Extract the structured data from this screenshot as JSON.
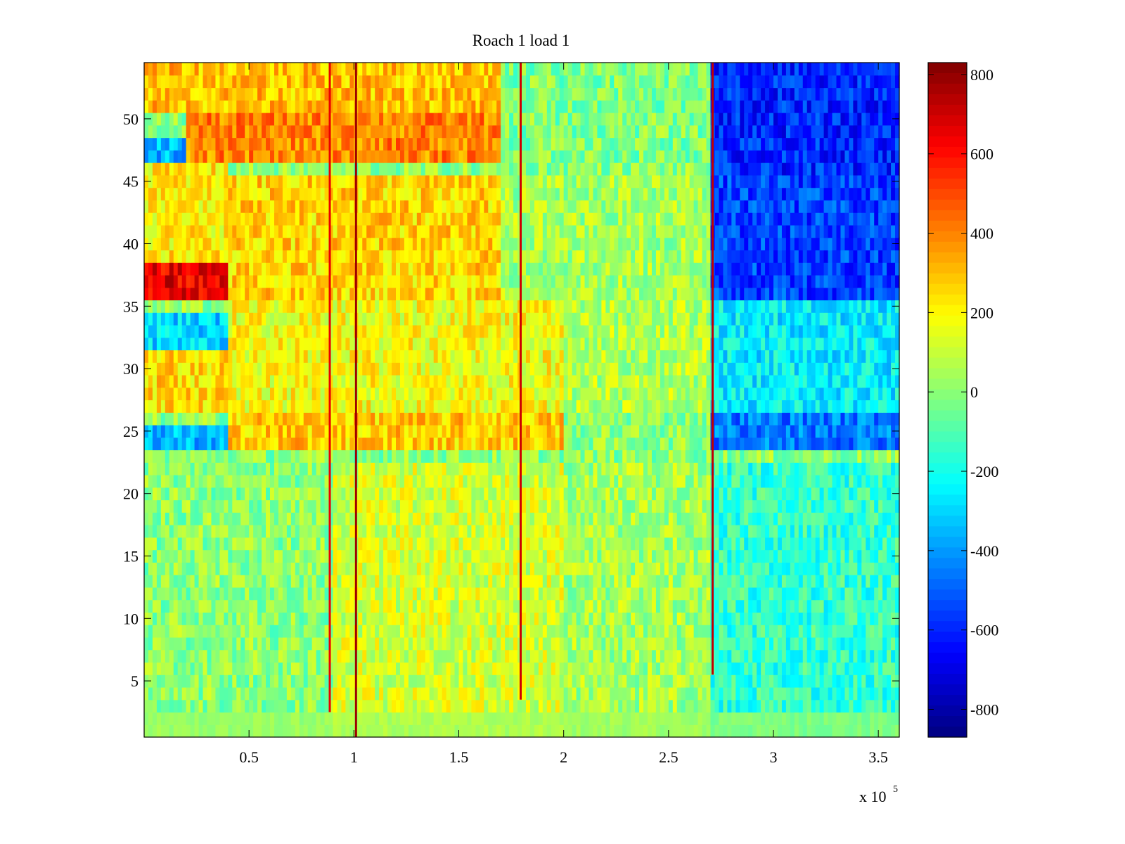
{
  "chart_data": {
    "type": "heatmap",
    "title": "Roach 1 load 1",
    "xlabel": "",
    "ylabel": "",
    "x_multiplier_base": "x 10",
    "x_multiplier_exponent": "5",
    "xlim": [
      0.0,
      3.6
    ],
    "ylim": [
      0.5,
      54.5
    ],
    "rows": 54,
    "x_ticks": [
      {
        "value": 0.5,
        "label": "0.5"
      },
      {
        "value": 1.0,
        "label": "1"
      },
      {
        "value": 1.5,
        "label": "1.5"
      },
      {
        "value": 2.0,
        "label": "2"
      },
      {
        "value": 2.5,
        "label": "2.5"
      },
      {
        "value": 3.0,
        "label": "3"
      },
      {
        "value": 3.5,
        "label": "3.5"
      }
    ],
    "y_ticks": [
      {
        "value": 5,
        "label": "5"
      },
      {
        "value": 10,
        "label": "10"
      },
      {
        "value": 15,
        "label": "15"
      },
      {
        "value": 20,
        "label": "20"
      },
      {
        "value": 25,
        "label": "25"
      },
      {
        "value": 30,
        "label": "30"
      },
      {
        "value": 35,
        "label": "35"
      },
      {
        "value": 40,
        "label": "40"
      },
      {
        "value": 45,
        "label": "45"
      },
      {
        "value": 50,
        "label": "50"
      }
    ],
    "colorbar": {
      "colormap": "jet",
      "range": [
        -870,
        830
      ],
      "ticks": [
        {
          "value": 800,
          "label": "800"
        },
        {
          "value": 600,
          "label": "600"
        },
        {
          "value": 400,
          "label": "400"
        },
        {
          "value": 200,
          "label": "200"
        },
        {
          "value": 0,
          "label": "0"
        },
        {
          "value": -200,
          "label": "-200"
        },
        {
          "value": -400,
          "label": "-400"
        },
        {
          "value": -600,
          "label": "-600"
        },
        {
          "value": -800,
          "label": "-800"
        }
      ]
    },
    "spike_columns": [
      {
        "x": 0.885,
        "value": 650,
        "rows": [
          3,
          54
        ]
      },
      {
        "x": 1.01,
        "value": 780,
        "rows": [
          1,
          54
        ]
      },
      {
        "x": 1.795,
        "value": 700,
        "rows": [
          4,
          54
        ]
      },
      {
        "x": 2.71,
        "value": 720,
        "rows": [
          6,
          54
        ]
      }
    ],
    "regions": [
      {
        "x": [
          0.0,
          0.9
        ],
        "rows": [
          1,
          22
        ],
        "value": 0
      },
      {
        "x": [
          0.9,
          2.0
        ],
        "rows": [
          1,
          22
        ],
        "value": 120
      },
      {
        "x": [
          2.0,
          2.7
        ],
        "rows": [
          1,
          22
        ],
        "value": 40
      },
      {
        "x": [
          2.7,
          3.6
        ],
        "rows": [
          1,
          22
        ],
        "value": -150
      },
      {
        "x": [
          0.0,
          0.4
        ],
        "rows": [
          24,
          25
        ],
        "value": -350
      },
      {
        "x": [
          0.4,
          2.0
        ],
        "rows": [
          24,
          26
        ],
        "value": 280
      },
      {
        "x": [
          2.0,
          2.7
        ],
        "rows": [
          23,
          26
        ],
        "value": 0
      },
      {
        "x": [
          2.7,
          3.6
        ],
        "rows": [
          24,
          26
        ],
        "value": -450
      },
      {
        "x": [
          0.0,
          0.4
        ],
        "rows": [
          27,
          31
        ],
        "value": 250
      },
      {
        "x": [
          0.4,
          2.0
        ],
        "rows": [
          27,
          35
        ],
        "value": 180
      },
      {
        "x": [
          2.0,
          2.7
        ],
        "rows": [
          27,
          35
        ],
        "value": 60
      },
      {
        "x": [
          2.7,
          3.6
        ],
        "rows": [
          27,
          35
        ],
        "value": -250
      },
      {
        "x": [
          0.0,
          0.4
        ],
        "rows": [
          32,
          34
        ],
        "value": -300
      },
      {
        "x": [
          0.0,
          0.4
        ],
        "rows": [
          36,
          38
        ],
        "value": 650
      },
      {
        "x": [
          0.4,
          1.7
        ],
        "rows": [
          36,
          45
        ],
        "value": 260
      },
      {
        "x": [
          1.7,
          2.7
        ],
        "rows": [
          36,
          45
        ],
        "value": 40
      },
      {
        "x": [
          2.7,
          3.6
        ],
        "rows": [
          36,
          45
        ],
        "value": -550
      },
      {
        "x": [
          0.0,
          0.4
        ],
        "rows": [
          39,
          46
        ],
        "value": 220
      },
      {
        "x": [
          0.0,
          0.2
        ],
        "rows": [
          47,
          48
        ],
        "value": -350
      },
      {
        "x": [
          0.2,
          1.7
        ],
        "rows": [
          47,
          50
        ],
        "value": 400
      },
      {
        "x": [
          1.7,
          2.7
        ],
        "rows": [
          47,
          54
        ],
        "value": -20
      },
      {
        "x": [
          2.7,
          3.6
        ],
        "rows": [
          46,
          54
        ],
        "value": -600
      },
      {
        "x": [
          0.0,
          1.7
        ],
        "rows": [
          51,
          54
        ],
        "value": 300
      }
    ]
  }
}
